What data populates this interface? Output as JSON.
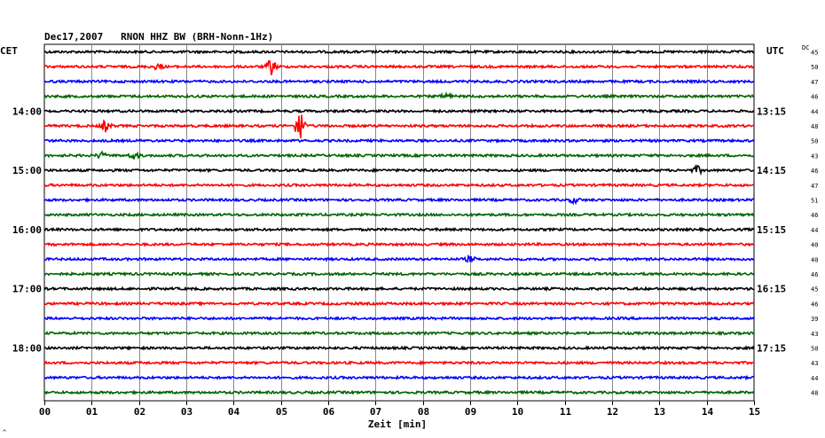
{
  "header": {
    "date": "Dec17,2007",
    "station": "RNON HHZ BW (BRH-Nonn-1Hz)",
    "left_zone": "CET",
    "right_zone": "UTC",
    "dc_label": "DC",
    "footer_mark": "^"
  },
  "chart_data": {
    "type": "line",
    "title": "Dec17,2007   RNON HHZ BW (BRH-Nonn-1Hz)",
    "xlabel": "Zeit [min]",
    "ylabel": "",
    "xlim": [
      0,
      15
    ],
    "x_ticks": [
      "00",
      "01",
      "02",
      "03",
      "04",
      "05",
      "06",
      "07",
      "08",
      "09",
      "10",
      "11",
      "12",
      "13",
      "14",
      "15"
    ],
    "grid": true,
    "trace_colors": [
      "#000000",
      "#ff0000",
      "#0000ff",
      "#006400"
    ],
    "left_time_labels": [
      {
        "label": "14:00",
        "trace": 4
      },
      {
        "label": "15:00",
        "trace": 8
      },
      {
        "label": "16:00",
        "trace": 12
      },
      {
        "label": "17:00",
        "trace": 16
      },
      {
        "label": "18:00",
        "trace": 20
      }
    ],
    "right_time_labels": [
      {
        "label": "13:15",
        "trace": 4
      },
      {
        "label": "14:15",
        "trace": 8
      },
      {
        "label": "15:15",
        "trace": 12
      },
      {
        "label": "16:15",
        "trace": 16
      },
      {
        "label": "17:15",
        "trace": 20
      }
    ],
    "dc_values": [
      "45",
      "50",
      "47",
      "46",
      "44",
      "48",
      "50",
      "43",
      "46",
      "47",
      "51",
      "46",
      "44",
      "40",
      "40",
      "46",
      "45",
      "46",
      "39",
      "43",
      "50",
      "43",
      "44",
      "48"
    ],
    "events": [
      {
        "trace": 1,
        "minute": 2.4,
        "amplitude": 3
      },
      {
        "trace": 1,
        "minute": 4.8,
        "amplitude": 9
      },
      {
        "trace": 3,
        "minute": 8.5,
        "amplitude": 3
      },
      {
        "trace": 5,
        "minute": 1.3,
        "amplitude": 6
      },
      {
        "trace": 5,
        "minute": 5.4,
        "amplitude": 18
      },
      {
        "trace": 7,
        "minute": 1.2,
        "amplitude": 3
      },
      {
        "trace": 7,
        "minute": 1.9,
        "amplitude": 4
      },
      {
        "trace": 8,
        "minute": 13.8,
        "amplitude": 4
      },
      {
        "trace": 10,
        "minute": 11.2,
        "amplitude": 3
      },
      {
        "trace": 14,
        "minute": 9.0,
        "amplitude": 3
      }
    ]
  }
}
